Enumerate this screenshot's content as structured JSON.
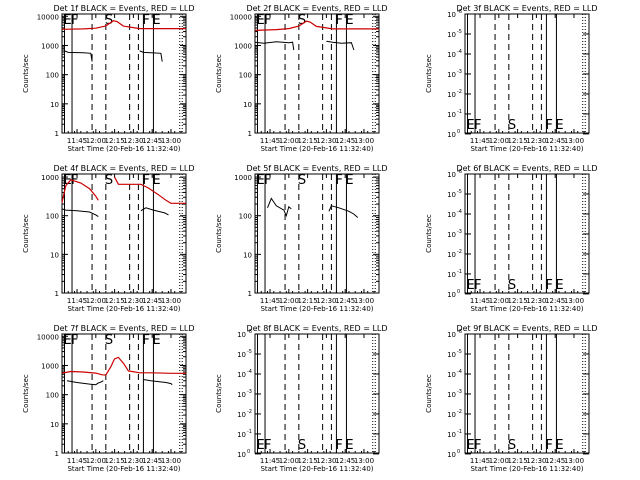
{
  "window": {
    "background": "#ffffff"
  },
  "colors": {
    "events": "#000000",
    "lld": "#cc0000",
    "frame": "#000000"
  },
  "chart_data": [
    {
      "id": "1f",
      "type": "line",
      "title": "Det 1f BLACK = Events, RED = LLD",
      "xlabel": "Start Time (20-Feb-16 11:32:40)",
      "ylabel": "Counts/sec",
      "xlim": [
        "11:33",
        "13:12"
      ],
      "ylim": [
        1,
        12000
      ],
      "yscale": "log",
      "xticks": [
        "11:45",
        "12:00",
        "12:15",
        "12:30",
        "12:45",
        "13:00"
      ],
      "ytick_labels": [
        "1",
        "10",
        "100",
        "1000",
        "10000"
      ],
      "markers": {
        "E": [
          "11:35",
          "12:46"
        ],
        "F": [
          "11:41",
          "12:38"
        ],
        "S": [
          "12:08"
        ]
      },
      "series": [
        {
          "name": "Events",
          "color": "#000000",
          "points": [
            [
              "11:35",
              650
            ],
            [
              "11:38",
              580
            ],
            [
              "11:50",
              560
            ],
            [
              "11:56",
              540
            ],
            [
              "11:57",
              280
            ]
          ]
        },
        {
          "name": "Events",
          "color": "#000000",
          "points": [
            [
              "12:35",
              650
            ],
            [
              "12:38",
              580
            ],
            [
              "12:44",
              560
            ],
            [
              "12:52",
              540
            ],
            [
              "12:53",
              280
            ]
          ]
        },
        {
          "name": "LLD",
          "color": "#cc0000",
          "points": [
            [
              "11:33",
              3600
            ],
            [
              "11:50",
              3700
            ],
            [
              "12:00",
              3900
            ],
            [
              "12:08",
              4700
            ],
            [
              "12:14",
              7000
            ],
            [
              "12:17",
              6600
            ],
            [
              "12:22",
              4600
            ],
            [
              "12:35",
              3800
            ],
            [
              "13:00",
              3800
            ],
            [
              "13:12",
              3800
            ]
          ]
        }
      ]
    },
    {
      "id": "2f",
      "type": "line",
      "title": "Det 2f BLACK = Events, RED = LLD",
      "xlabel": "Start Time (20-Feb-16 11:32:40)",
      "ylabel": "Counts/sec",
      "xlim": [
        "11:33",
        "13:12"
      ],
      "ylim": [
        1,
        12000
      ],
      "yscale": "log",
      "xticks": [
        "11:45",
        "12:00",
        "12:15",
        "12:30",
        "12:45",
        "13:00"
      ],
      "ytick_labels": [
        "1",
        "10",
        "100",
        "1000",
        "10000"
      ],
      "markers": {
        "E": [
          "11:35",
          "12:46"
        ],
        "F": [
          "11:41",
          "12:38"
        ],
        "S": [
          "12:08"
        ]
      },
      "series": [
        {
          "name": "Events",
          "color": "#000000",
          "points": [
            [
              "11:33",
              1300
            ],
            [
              "11:40",
              1200
            ],
            [
              "11:50",
              1350
            ],
            [
              "12:00",
              1250
            ],
            [
              "12:03",
              1300
            ],
            [
              "12:04",
              700
            ]
          ]
        },
        {
          "name": "Events",
          "color": "#000000",
          "points": [
            [
              "12:30",
              1400
            ],
            [
              "12:35",
              1300
            ],
            [
              "12:42",
              1200
            ],
            [
              "12:50",
              1250
            ],
            [
              "12:52",
              700
            ]
          ]
        },
        {
          "name": "LLD",
          "color": "#cc0000",
          "points": [
            [
              "11:33",
              3300
            ],
            [
              "11:50",
              3500
            ],
            [
              "12:00",
              3800
            ],
            [
              "12:08",
              4600
            ],
            [
              "12:14",
              6800
            ],
            [
              "12:17",
              6400
            ],
            [
              "12:22",
              4500
            ],
            [
              "12:35",
              3700
            ],
            [
              "13:00",
              3700
            ],
            [
              "13:12",
              3700
            ]
          ]
        }
      ]
    },
    {
      "id": "3f",
      "type": "line",
      "title": "Det 3f BLACK = Events, RED = LLD",
      "xlabel": "Start Time (20-Feb-16 11:32:40)",
      "ylabel": "Counts/sec",
      "xlim": [
        "11:33",
        "13:12"
      ],
      "ylim": [
        0.9,
        1e-06
      ],
      "yscale": "log",
      "xticks": [
        "11:45",
        "12:00",
        "12:15",
        "12:30",
        "12:45",
        "13:00"
      ],
      "ytick_labels": [
        [
          "10",
          "0"
        ],
        [
          "10",
          "-1"
        ],
        [
          "10",
          "-2"
        ],
        [
          "10",
          "-3"
        ],
        [
          "10",
          "-4"
        ],
        [
          "10",
          "-5"
        ],
        [
          "10",
          "-6"
        ]
      ],
      "markers": {
        "E": [
          "11:35",
          "12:46"
        ],
        "F": [
          "11:41",
          "12:38"
        ],
        "S": [
          "12:08"
        ]
      },
      "series": []
    },
    {
      "id": "4f",
      "type": "line",
      "title": "Det 4f BLACK = Events, RED = LLD",
      "xlabel": "Start Time (20-Feb-16 11:32:40)",
      "ylabel": "Counts/sec",
      "xlim": [
        "11:33",
        "13:12"
      ],
      "ylim": [
        1,
        1200
      ],
      "yscale": "log",
      "xticks": [
        "11:45",
        "12:00",
        "12:15",
        "12:30",
        "12:45",
        "13:00"
      ],
      "ytick_labels": [
        "1",
        "10",
        "100",
        "1000"
      ],
      "markers": {
        "E": [
          "11:35",
          "12:46"
        ],
        "F": [
          "11:41",
          "12:38"
        ],
        "S": [
          "12:08"
        ]
      },
      "series": [
        {
          "name": "Events",
          "color": "#000000",
          "points": [
            [
              "11:33",
              150
            ],
            [
              "11:36",
              140
            ],
            [
              "11:45",
              135
            ],
            [
              "11:55",
              125
            ],
            [
              "12:00",
              105
            ],
            [
              "12:02",
              95
            ]
          ]
        },
        {
          "name": "Events",
          "color": "#000000",
          "points": [
            [
              "12:36",
              135
            ],
            [
              "12:40",
              160
            ],
            [
              "12:46",
              140
            ],
            [
              "12:55",
              118
            ],
            [
              "12:58",
              105
            ]
          ]
        },
        {
          "name": "LLD",
          "color": "#cc0000",
          "points": [
            [
              "11:33",
              220
            ],
            [
              "11:36",
              600
            ],
            [
              "11:40",
              850
            ],
            [
              "11:48",
              700
            ],
            [
              "11:55",
              500
            ],
            [
              "12:00",
              320
            ],
            [
              "12:02",
              250
            ]
          ]
        },
        {
          "name": "LLD",
          "color": "#cc0000",
          "points": [
            [
              "12:15",
              1000
            ],
            [
              "12:18",
              650
            ],
            [
              "12:36",
              650
            ],
            [
              "12:42",
              520
            ],
            [
              "12:50",
              350
            ],
            [
              "12:56",
              250
            ],
            [
              "13:00",
              210
            ],
            [
              "13:12",
              210
            ]
          ]
        }
      ]
    },
    {
      "id": "5f",
      "type": "line",
      "title": "Det 5f BLACK = Events, RED = LLD",
      "xlabel": "Start Time (20-Feb-16 11:32:40)",
      "ylabel": "Counts/sec",
      "xlim": [
        "11:33",
        "13:12"
      ],
      "ylim": [
        1,
        1200
      ],
      "yscale": "log",
      "xticks": [
        "11:45",
        "12:00",
        "12:15",
        "12:30",
        "12:45",
        "13:00"
      ],
      "ytick_labels": [
        "1",
        "10",
        "100",
        "1000"
      ],
      "markers": {
        "E": [
          "11:35",
          "12:46"
        ],
        "F": [
          "11:41",
          "12:38"
        ],
        "S": [
          "12:08"
        ]
      },
      "series": [
        {
          "name": "Events",
          "color": "#000000",
          "points": [
            [
              "11:43",
              160
            ],
            [
              "11:46",
              280
            ],
            [
              "11:50",
              180
            ],
            [
              "11:56",
              140
            ],
            [
              "11:58",
              100
            ],
            [
              "12:00",
              170
            ],
            [
              "12:02",
              150
            ]
          ]
        },
        {
          "name": "Events",
          "color": "#000000",
          "points": [
            [
              "12:32",
              130
            ],
            [
              "12:34",
              180
            ],
            [
              "12:40",
              160
            ],
            [
              "12:48",
              130
            ],
            [
              "12:52",
              110
            ],
            [
              "12:55",
              90
            ]
          ]
        }
      ]
    },
    {
      "id": "6f",
      "type": "line",
      "title": "Det 6f BLACK = Events, RED = LLD",
      "xlabel": "Start Time (20-Feb-16 11:32:40)",
      "ylabel": "Counts/sec",
      "xlim": [
        "11:33",
        "13:12"
      ],
      "ylim": [
        0.9,
        1e-06
      ],
      "yscale": "log",
      "xticks": [
        "11:45",
        "12:00",
        "12:15",
        "12:30",
        "12:45",
        "13:00"
      ],
      "ytick_labels": [
        [
          "10",
          "0"
        ],
        [
          "10",
          "-1"
        ],
        [
          "10",
          "-2"
        ],
        [
          "10",
          "-3"
        ],
        [
          "10",
          "-4"
        ],
        [
          "10",
          "-5"
        ],
        [
          "10",
          "-6"
        ]
      ],
      "markers": {
        "E": [
          "11:35",
          "12:46"
        ],
        "F": [
          "11:41",
          "12:38"
        ],
        "S": [
          "12:08"
        ]
      },
      "series": []
    },
    {
      "id": "7f",
      "type": "line",
      "title": "Det 7f BLACK = Events, RED = LLD",
      "xlabel": "Start Time (20-Feb-16 11:32:40)",
      "ylabel": "Counts/sec",
      "xlim": [
        "11:33",
        "13:12"
      ],
      "ylim": [
        1,
        12000
      ],
      "yscale": "log",
      "xticks": [
        "11:45",
        "12:00",
        "12:15",
        "12:30",
        "12:45",
        "13:00"
      ],
      "ytick_labels": [
        "1",
        "10",
        "100",
        "1000",
        "10000"
      ],
      "markers": {
        "E": [
          "11:35",
          "12:46"
        ],
        "F": [
          "11:41",
          "12:38"
        ],
        "S": [
          "12:08"
        ]
      },
      "series": [
        {
          "name": "Events",
          "color": "#000000",
          "points": [
            [
              "11:37",
              300
            ],
            [
              "11:45",
              260
            ],
            [
              "11:55",
              230
            ],
            [
              "12:00",
              220
            ],
            [
              "12:02",
              250
            ],
            [
              "12:04",
              270
            ],
            [
              "12:06",
              300
            ]
          ]
        },
        {
          "name": "Events",
          "color": "#000000",
          "points": [
            [
              "12:38",
              330
            ],
            [
              "12:44",
              300
            ],
            [
              "12:50",
              280
            ],
            [
              "12:56",
              260
            ],
            [
              "13:00",
              240
            ],
            [
              "13:01",
              220
            ]
          ]
        },
        {
          "name": "LLD",
          "color": "#cc0000",
          "points": [
            [
              "11:33",
              550
            ],
            [
              "11:40",
              620
            ],
            [
              "11:50",
              600
            ],
            [
              "12:00",
              550
            ],
            [
              "12:05",
              480
            ],
            [
              "12:08",
              470
            ],
            [
              "12:12",
              900
            ],
            [
              "12:15",
              1700
            ],
            [
              "12:18",
              1900
            ],
            [
              "12:22",
              1200
            ],
            [
              "12:26",
              650
            ],
            [
              "12:35",
              560
            ],
            [
              "12:45",
              560
            ],
            [
              "13:00",
              540
            ],
            [
              "13:12",
              540
            ]
          ]
        }
      ]
    },
    {
      "id": "8f",
      "type": "line",
      "title": "Det 8f BLACK = Events, RED = LLD",
      "xlabel": "Start Time (20-Feb-16 11:32:40)",
      "ylabel": "Counts/sec",
      "xlim": [
        "11:33",
        "13:12"
      ],
      "ylim": [
        0.9,
        1e-06
      ],
      "yscale": "log",
      "xticks": [
        "11:45",
        "12:00",
        "12:15",
        "12:30",
        "12:45",
        "13:00"
      ],
      "ytick_labels": [
        [
          "10",
          "0"
        ],
        [
          "10",
          "-1"
        ],
        [
          "10",
          "-2"
        ],
        [
          "10",
          "-3"
        ],
        [
          "10",
          "-4"
        ],
        [
          "10",
          "-5"
        ],
        [
          "10",
          "-6"
        ]
      ],
      "markers": {
        "E": [
          "11:35",
          "12:46"
        ],
        "F": [
          "11:41",
          "12:38"
        ],
        "S": [
          "12:08"
        ]
      },
      "series": []
    },
    {
      "id": "9f",
      "type": "line",
      "title": "Det 9f BLACK = Events, RED = LLD",
      "xlabel": "Start Time (20-Feb-16 11:32:40)",
      "ylabel": "Counts/sec",
      "xlim": [
        "11:33",
        "13:12"
      ],
      "ylim": [
        0.9,
        1e-06
      ],
      "yscale": "log",
      "xticks": [
        "11:45",
        "12:00",
        "12:15",
        "12:30",
        "12:45",
        "13:00"
      ],
      "ytick_labels": [
        [
          "10",
          "0"
        ],
        [
          "10",
          "-1"
        ],
        [
          "10",
          "-2"
        ],
        [
          "10",
          "-3"
        ],
        [
          "10",
          "-4"
        ],
        [
          "10",
          "-5"
        ],
        [
          "10",
          "-6"
        ]
      ],
      "markers": {
        "E": [
          "11:35",
          "12:46"
        ],
        "F": [
          "11:41",
          "12:38"
        ],
        "S": [
          "12:08"
        ]
      },
      "series": []
    }
  ]
}
